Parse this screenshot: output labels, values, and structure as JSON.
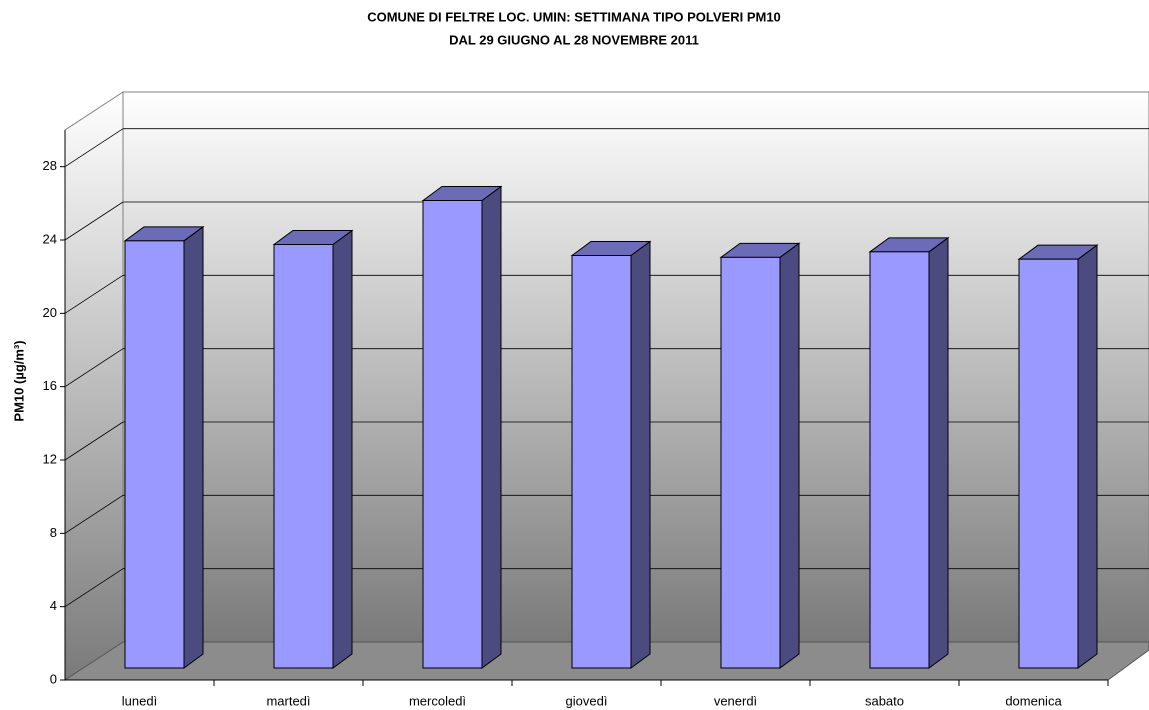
{
  "chart_data": {
    "type": "bar3d",
    "title": [
      "COMUNE DI FELTRE LOC. UMIN: SETTIMANA TIPO POLVERI PM10",
      "DAL 29 GIUGNO AL 28 NOVEMBRE 2011"
    ],
    "y_label": "PM10 (µg/m³)",
    "categories": [
      "lunedì",
      "martedì",
      "mercoledì",
      "giovedì",
      "venerdì",
      "sabato",
      "domenica"
    ],
    "values": [
      23.3,
      23.1,
      25.5,
      22.5,
      22.4,
      22.7,
      22.3
    ],
    "color": "#9999ff",
    "ylim": [
      0,
      30
    ],
    "yticks": [
      0,
      4,
      8,
      12,
      16,
      20,
      24,
      28
    ],
    "grid": true
  }
}
